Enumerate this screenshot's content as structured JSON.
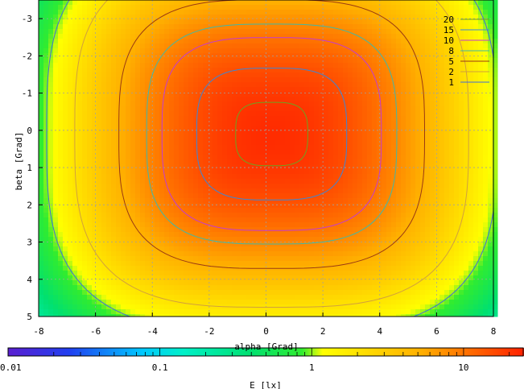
{
  "chart_data": {
    "type": "heatmap",
    "title": "",
    "xlabel": "alpha [Grad]",
    "ylabel": "beta [Grad]",
    "xlim": [
      -8,
      8
    ],
    "ylim": [
      5,
      -3.5
    ],
    "x_ticks": [
      "-8",
      "-6",
      "-4",
      "-2",
      "0",
      "2",
      "4",
      "6",
      "8"
    ],
    "y_ticks": [
      "-3",
      "-2",
      "-1",
      "0",
      "1",
      "2",
      "3",
      "4",
      "5"
    ],
    "grid": true,
    "colorbar": {
      "label": "E [lx]",
      "scale": "log",
      "range": [
        0.01,
        25
      ],
      "tick_labels": [
        "0.01",
        "0.1",
        "1",
        "10"
      ]
    },
    "peak": {
      "alpha": 0.2,
      "beta": 0.1,
      "value": 22
    },
    "contours": {
      "legend_position": "top-right",
      "levels": [
        {
          "label": "20",
          "color": "#6fa21f"
        },
        {
          "label": "15",
          "color": "#3a86d8"
        },
        {
          "label": "10",
          "color": "#c43bd1"
        },
        {
          "label": "8",
          "color": "#3fb8a8"
        },
        {
          "label": "5",
          "color": "#9b3a12"
        },
        {
          "label": "2",
          "color": "#d2a03c"
        },
        {
          "label": "1",
          "color": "#3f6fd8"
        }
      ]
    }
  }
}
